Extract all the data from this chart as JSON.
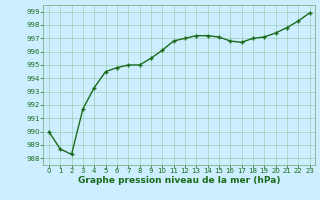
{
  "x": [
    0,
    1,
    2,
    3,
    4,
    5,
    6,
    7,
    8,
    9,
    10,
    11,
    12,
    13,
    14,
    15,
    16,
    17,
    18,
    19,
    20,
    21,
    22,
    23
  ],
  "y": [
    990.0,
    988.7,
    988.3,
    991.7,
    993.3,
    994.5,
    994.8,
    995.0,
    995.0,
    995.5,
    996.1,
    996.8,
    997.0,
    997.2,
    997.2,
    997.1,
    996.8,
    996.7,
    997.0,
    997.1,
    997.4,
    997.8,
    998.3,
    998.9
  ],
  "xlim": [
    -0.5,
    23.5
  ],
  "ylim": [
    987.5,
    999.5
  ],
  "yticks": [
    988,
    989,
    990,
    991,
    992,
    993,
    994,
    995,
    996,
    997,
    998,
    999
  ],
  "xticks": [
    0,
    1,
    2,
    3,
    4,
    5,
    6,
    7,
    8,
    9,
    10,
    11,
    12,
    13,
    14,
    15,
    16,
    17,
    18,
    19,
    20,
    21,
    22,
    23
  ],
  "xlabel": "Graphe pression niveau de la mer (hPa)",
  "line_color": "#1a6b1a",
  "marker": "+",
  "bg_color": "#cceeff",
  "grid_color": "#6aaa6a",
  "axis_label_color": "#1a6b1a",
  "tick_label_color": "#1a6b1a",
  "tick_label_fontsize": 5.0,
  "xlabel_fontsize": 6.5,
  "line_width": 1.0,
  "marker_size": 3.5
}
